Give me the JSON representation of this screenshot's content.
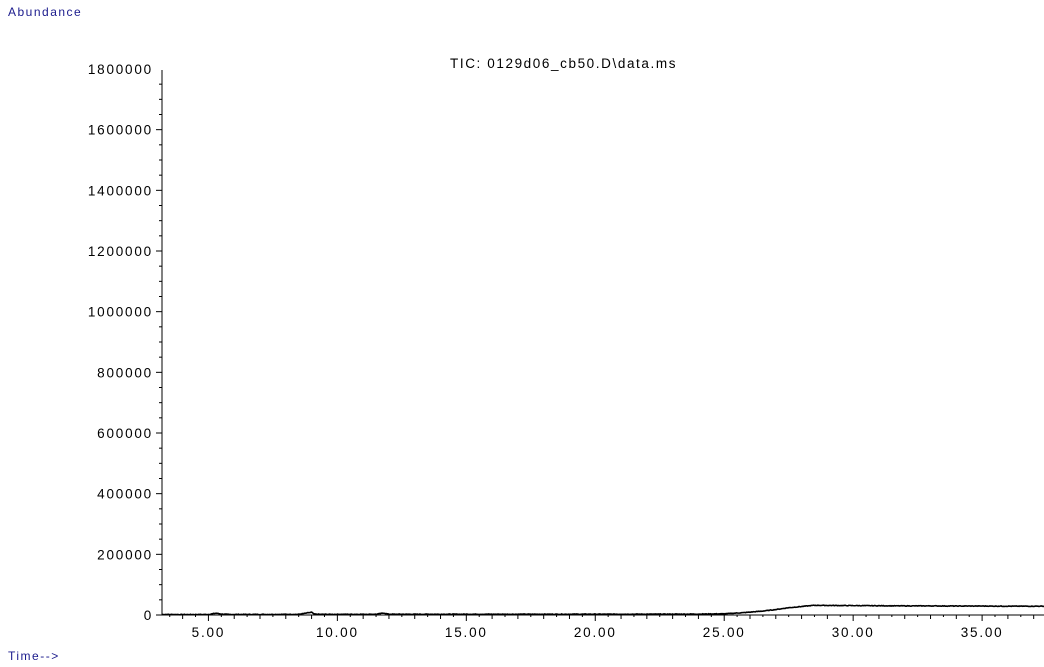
{
  "chart_data": {
    "type": "line",
    "title": "TIC: 0129d06_cb50.D\\data.ms",
    "ylabel": "Abundance",
    "xlabel": "Time-->",
    "xlim": [
      3.2,
      37.4
    ],
    "ylim": [
      0,
      1900000
    ],
    "x_ticks": [
      "5.00",
      "10.00",
      "15.00",
      "20.00",
      "25.00",
      "30.00",
      "35.00"
    ],
    "y_ticks": [
      "0",
      "200000",
      "400000",
      "600000",
      "800000",
      "1000000",
      "1200000",
      "1400000",
      "1600000",
      "1800000"
    ],
    "grid": false,
    "series": [
      {
        "x": [
          3.2,
          4.0,
          5.0,
          5.3,
          5.5,
          5.8,
          7.0,
          8.5,
          9.0,
          9.1,
          9.3,
          10.0,
          11.5,
          11.8,
          12.0,
          13.0,
          15.0,
          17.5,
          20.0,
          22.5,
          24.0,
          25.0,
          25.8,
          26.5,
          27.0,
          27.5,
          28.0,
          28.5,
          29.0,
          30.0,
          31.0,
          32.0,
          33.0,
          34.0,
          35.0,
          36.0,
          37.0,
          37.4
        ],
        "y": [
          2000,
          1500,
          1800,
          6000,
          3000,
          1800,
          2000,
          2200,
          9000,
          3000,
          2200,
          2300,
          2500,
          6500,
          2500,
          2500,
          2600,
          2600,
          2700,
          2800,
          3000,
          4000,
          8000,
          13000,
          18000,
          24000,
          28000,
          32000,
          31500,
          31000,
          30500,
          30000,
          30000,
          29500,
          29500,
          29000,
          29000,
          29000
        ]
      }
    ]
  }
}
